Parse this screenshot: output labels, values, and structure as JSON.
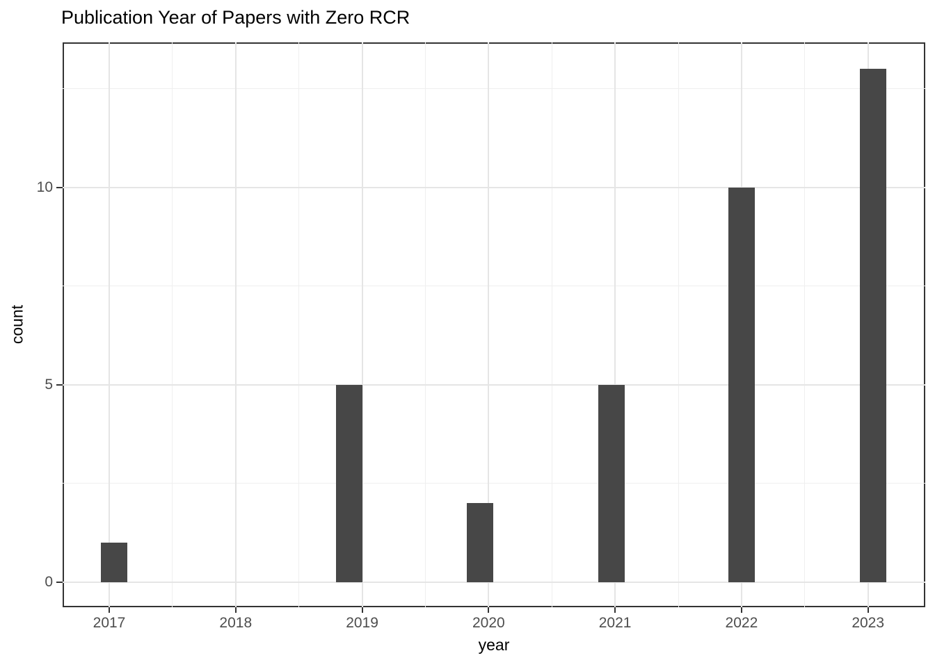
{
  "chart_data": {
    "type": "bar",
    "title": "Publication Year of Papers with Zero RCR",
    "xlabel": "year",
    "ylabel": "count",
    "categories": [
      "2017",
      "2018",
      "2019",
      "2020",
      "2021",
      "2022",
      "2023"
    ],
    "values": [
      1,
      0,
      5,
      2,
      5,
      10,
      13
    ],
    "ytick_values": [
      0,
      5,
      10
    ],
    "ytick_labels": [
      "0",
      "5",
      "10"
    ],
    "minor_ytick_values": [
      2.5,
      7.5,
      12.5
    ],
    "ylim": [
      -0.65,
      13.65
    ],
    "grid": "major and minor, light gray on white panel",
    "legend": "none",
    "panel_border": true,
    "colors": {
      "bar": "#474747",
      "grid_major": "#e5e5e5",
      "grid_minor": "#efefef",
      "panel_border": "#333333",
      "tick_mark": "#333333",
      "tick_label": "#4d4d4d",
      "title": "#000000",
      "background": "#ffffff"
    }
  }
}
